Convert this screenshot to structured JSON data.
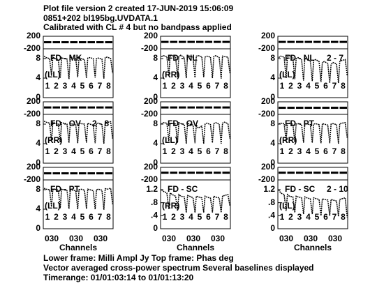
{
  "header": {
    "line1": "Plot file version 2  created 17-JUN-2019 15:06:09",
    "line2": "0851+202   bl195bg.UVDATA.1",
    "line3": "Calibrated with CL # 4 but no bandpass applied"
  },
  "footer": {
    "line1": "Lower frame: Milli Ampl Jy   Top frame: Phas deg",
    "line2": "Vector averaged cross-power spectrum    Several baselines displayed",
    "line3": "Timerange: 01/01:03:14 to 01/01:13:20"
  },
  "x_axis_label": "Channels",
  "x_tick_labels": [
    "030",
    "030",
    "030"
  ],
  "if_labels": [
    "1",
    "2",
    "3",
    "4",
    "5",
    "6",
    "7",
    "8"
  ],
  "phase_ylim": [
    -200,
    200
  ],
  "phase_yticks": [
    -200,
    200
  ],
  "panels": [
    {
      "baseline": "FD - MK",
      "pol": "(LL)",
      "amp_ylim": [
        0,
        10
      ],
      "amp_yticks": [
        0,
        4,
        8
      ],
      "phase": [
        10,
        10,
        10,
        10,
        10,
        10,
        10,
        10
      ],
      "amp": [
        8.5,
        8.2,
        8.0,
        4.5,
        8.3,
        8.0,
        7.8,
        4.0,
        8.2,
        8.0,
        7.9,
        3.8,
        8.4,
        8.1,
        8.0,
        4.2,
        8.3,
        8.0,
        7.8,
        4.0,
        8.1,
        8.2,
        8.0,
        4.1,
        8.0,
        8.1,
        7.9,
        3.9,
        8.2,
        8.3,
        8.0,
        5.0
      ]
    },
    {
      "baseline": "FD - NL",
      "pol": "(RR)",
      "amp_ylim": [
        0,
        10
      ],
      "amp_yticks": [
        0,
        4,
        8
      ],
      "phase": [
        20,
        20,
        20,
        20,
        20,
        20,
        20,
        20
      ],
      "amp": [
        8.4,
        8.6,
        8.4,
        4.5,
        8.5,
        8.6,
        8.3,
        4.2,
        8.4,
        8.7,
        8.2,
        4.0,
        8.6,
        8.5,
        8.3,
        4.1,
        8.5,
        8.6,
        8.4,
        4.2,
        8.3,
        8.5,
        8.3,
        4.0,
        8.4,
        8.6,
        8.2,
        3.9,
        8.5,
        8.4,
        8.3,
        5.0
      ]
    },
    {
      "baseline": "FD - NL",
      "label2": "2 - 7",
      "pol": "(LL)",
      "amp_ylim": [
        0,
        10
      ],
      "amp_yticks": [
        0,
        4,
        8
      ],
      "phase": [
        20,
        20,
        20,
        20,
        20,
        20,
        20,
        20
      ],
      "amp": [
        8.2,
        8.5,
        8.3,
        4.0,
        8.3,
        8.6,
        8.2,
        3.8,
        8.0,
        8.2,
        7.8,
        3.5,
        8.1,
        7.9,
        7.5,
        3.4,
        7.6,
        7.8,
        7.4,
        3.2,
        7.2,
        7.4,
        7.0,
        3.0,
        6.8,
        7.2,
        6.9,
        3.0,
        7.4,
        7.6,
        7.8,
        4.5
      ]
    },
    {
      "baseline": "FD - OV",
      "label2": "2 - 8",
      "pol": "(RR)",
      "amp_ylim": [
        0,
        10
      ],
      "amp_yticks": [
        0,
        4,
        8
      ],
      "phase": [
        20,
        20,
        20,
        20,
        20,
        20,
        20,
        20
      ],
      "amp": [
        8.6,
        8.4,
        8.2,
        4.5,
        8.4,
        8.2,
        8.0,
        4.3,
        8.3,
        8.2,
        8.0,
        4.2,
        8.2,
        8.0,
        7.9,
        4.1,
        8.3,
        8.1,
        8.0,
        4.2,
        8.2,
        8.0,
        7.8,
        4.1,
        8.1,
        8.2,
        7.9,
        4.0,
        8.4,
        8.3,
        8.5,
        5.0
      ]
    },
    {
      "baseline": "FD - OV",
      "pol": "(LL)",
      "amp_ylim": [
        0,
        10
      ],
      "amp_yticks": [
        0,
        4,
        8
      ],
      "phase": [
        20,
        20,
        20,
        20,
        20,
        20,
        20,
        20
      ],
      "amp": [
        8.0,
        8.3,
        8.2,
        4.5,
        8.1,
        8.2,
        8.0,
        4.2,
        8.3,
        8.1,
        7.9,
        4.0,
        8.2,
        8.0,
        7.8,
        4.1,
        7.8,
        7.2,
        7.6,
        4.0,
        8.0,
        8.2,
        7.9,
        4.2,
        8.1,
        8.3,
        8.0,
        4.0,
        8.2,
        8.4,
        8.1,
        5.0
      ]
    },
    {
      "baseline": "FD - PT",
      "pol": "(RR)",
      "amp_ylim": [
        0,
        10
      ],
      "amp_yticks": [
        0,
        4,
        8
      ],
      "phase": [
        10,
        10,
        10,
        10,
        10,
        10,
        10,
        10
      ],
      "amp": [
        8.0,
        8.2,
        8.1,
        4.6,
        8.1,
        8.2,
        8.0,
        4.3,
        8.0,
        8.1,
        7.9,
        4.2,
        8.1,
        8.0,
        7.9,
        4.2,
        8.0,
        8.1,
        7.9,
        4.1,
        8.1,
        8.0,
        7.8,
        4.1,
        8.0,
        8.1,
        7.9,
        4.0,
        8.1,
        8.2,
        8.3,
        5.2
      ]
    },
    {
      "baseline": "FD - PT",
      "pol": "(LL)",
      "amp_ylim": [
        0,
        10
      ],
      "amp_yticks": [
        0,
        4,
        8
      ],
      "phase": [
        10,
        10,
        10,
        10,
        10,
        10,
        10,
        10
      ],
      "amp": [
        8.3,
        8.1,
        8.0,
        4.5,
        8.0,
        8.1,
        7.9,
        4.2,
        8.1,
        8.0,
        7.8,
        4.1,
        8.0,
        7.9,
        7.8,
        4.0,
        8.0,
        8.1,
        7.9,
        4.1,
        8.1,
        8.0,
        7.8,
        4.0,
        8.0,
        8.1,
        7.9,
        3.9,
        8.2,
        8.1,
        8.3,
        5.0
      ]
    },
    {
      "baseline": "FD - SC",
      "pol": "(RR)",
      "amp_ylim": [
        0,
        1.5
      ],
      "amp_yticks": [
        0,
        {
          "value": 0.4,
          "label": ".4"
        },
        {
          "value": 0.8,
          "label": ".8"
        },
        1.2
      ],
      "phase": [
        30,
        30,
        30,
        30,
        30,
        30,
        30,
        30
      ],
      "amp": [
        1.2,
        1.15,
        1.1,
        0.6,
        1.1,
        1.05,
        1.0,
        0.55,
        1.05,
        1.0,
        0.98,
        0.5,
        1.02,
        1.0,
        0.95,
        0.5,
        1.0,
        0.98,
        0.95,
        0.5,
        1.0,
        0.97,
        0.94,
        0.5,
        1.0,
        0.97,
        0.95,
        0.5,
        1.0,
        1.02,
        1.05,
        0.7
      ]
    },
    {
      "baseline": "FD - SC",
      "label2": "2 - 10",
      "pol": "(LL)",
      "amp_ylim": [
        0,
        1.5
      ],
      "amp_yticks": [
        0,
        {
          "value": 0.4,
          "label": ".4"
        },
        {
          "value": 0.8,
          "label": ".8"
        },
        1.2
      ],
      "phase": [
        30,
        30,
        30,
        30,
        30,
        30,
        30,
        30
      ],
      "amp": [
        1.2,
        1.1,
        1.05,
        0.55,
        1.05,
        1.0,
        0.98,
        0.5,
        1.0,
        0.98,
        0.95,
        0.45,
        0.98,
        0.95,
        0.92,
        0.45,
        0.95,
        0.93,
        0.9,
        0.4,
        0.92,
        0.9,
        0.88,
        0.4,
        0.9,
        0.88,
        0.85,
        0.38,
        0.9,
        0.92,
        0.95,
        0.35
      ]
    }
  ]
}
